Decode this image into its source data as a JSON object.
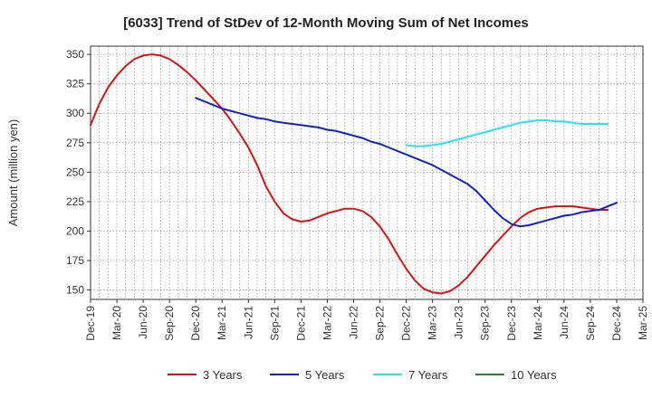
{
  "chart_data": {
    "type": "line",
    "title": "[6033]  Trend of StDev of 12-Month Moving Sum of Net Incomes",
    "xlabel": "",
    "ylabel": "Amount (million yen)",
    "x_ticks": [
      "Dec-19",
      "Mar-20",
      "Jun-20",
      "Sep-20",
      "Dec-20",
      "Mar-21",
      "Jun-21",
      "Sep-21",
      "Dec-21",
      "Mar-22",
      "Jun-22",
      "Sep-22",
      "Dec-22",
      "Mar-23",
      "Jun-23",
      "Sep-23",
      "Dec-23",
      "Mar-24",
      "Jun-24",
      "Sep-24",
      "Dec-24",
      "Mar-25"
    ],
    "y_ticks": [
      150,
      175,
      200,
      225,
      250,
      275,
      300,
      325,
      350
    ],
    "ylim": [
      142,
      357
    ],
    "grid": true,
    "legend_position": "bottom",
    "series": [
      {
        "name": "3 Years",
        "color": "#dd1111",
        "points": [
          [
            "Dec-19",
            290
          ],
          [
            "Jan-20",
            308
          ],
          [
            "Feb-20",
            322
          ],
          [
            "Mar-20",
            332
          ],
          [
            "Apr-20",
            340
          ],
          [
            "May-20",
            346
          ],
          [
            "Jun-20",
            349
          ],
          [
            "Jul-20",
            350
          ],
          [
            "Aug-20",
            349
          ],
          [
            "Sep-20",
            346
          ],
          [
            "Oct-20",
            341
          ],
          [
            "Nov-20",
            335
          ],
          [
            "Dec-20",
            328
          ],
          [
            "Jan-21",
            320
          ],
          [
            "Feb-21",
            312
          ],
          [
            "Mar-21",
            304
          ],
          [
            "Apr-21",
            294
          ],
          [
            "May-21",
            283
          ],
          [
            "Jun-21",
            271
          ],
          [
            "Jul-21",
            256
          ],
          [
            "Aug-21",
            238
          ],
          [
            "Sep-21",
            225
          ],
          [
            "Oct-21",
            215
          ],
          [
            "Nov-21",
            210
          ],
          [
            "Dec-21",
            208
          ],
          [
            "Jan-22",
            209
          ],
          [
            "Feb-22",
            212
          ],
          [
            "Mar-22",
            215
          ],
          [
            "Apr-22",
            217
          ],
          [
            "May-22",
            219
          ],
          [
            "Jun-22",
            219
          ],
          [
            "Jul-22",
            217
          ],
          [
            "Aug-22",
            212
          ],
          [
            "Sep-22",
            204
          ],
          [
            "Oct-22",
            193
          ],
          [
            "Nov-22",
            180
          ],
          [
            "Dec-22",
            168
          ],
          [
            "Jan-23",
            158
          ],
          [
            "Feb-23",
            151
          ],
          [
            "Mar-23",
            148
          ],
          [
            "Apr-23",
            147
          ],
          [
            "May-23",
            149
          ],
          [
            "Jun-23",
            154
          ],
          [
            "Jul-23",
            161
          ],
          [
            "Aug-23",
            170
          ],
          [
            "Sep-23",
            179
          ],
          [
            "Oct-23",
            188
          ],
          [
            "Nov-23",
            196
          ],
          [
            "Dec-23",
            204
          ],
          [
            "Jan-24",
            211
          ],
          [
            "Feb-24",
            216
          ],
          [
            "Mar-24",
            219
          ],
          [
            "Apr-24",
            220
          ],
          [
            "May-24",
            221
          ],
          [
            "Jun-24",
            221
          ],
          [
            "Jul-24",
            221
          ],
          [
            "Aug-24",
            220
          ],
          [
            "Sep-24",
            219
          ],
          [
            "Oct-24",
            218
          ],
          [
            "Nov-24",
            218
          ]
        ]
      },
      {
        "name": "5 Years",
        "color": "#1122cc",
        "points": [
          [
            "Dec-20",
            313
          ],
          [
            "Jan-21",
            310
          ],
          [
            "Feb-21",
            307
          ],
          [
            "Mar-21",
            304
          ],
          [
            "Apr-21",
            302
          ],
          [
            "May-21",
            300
          ],
          [
            "Jun-21",
            298
          ],
          [
            "Jul-21",
            296
          ],
          [
            "Aug-21",
            295
          ],
          [
            "Sep-21",
            293
          ],
          [
            "Oct-21",
            292
          ],
          [
            "Nov-21",
            291
          ],
          [
            "Dec-21",
            290
          ],
          [
            "Jan-22",
            289
          ],
          [
            "Feb-22",
            288
          ],
          [
            "Mar-22",
            286
          ],
          [
            "Apr-22",
            285
          ],
          [
            "May-22",
            283
          ],
          [
            "Jun-22",
            281
          ],
          [
            "Jul-22",
            279
          ],
          [
            "Aug-22",
            276
          ],
          [
            "Sep-22",
            274
          ],
          [
            "Oct-22",
            271
          ],
          [
            "Nov-22",
            268
          ],
          [
            "Dec-22",
            265
          ],
          [
            "Jan-23",
            262
          ],
          [
            "Feb-23",
            259
          ],
          [
            "Mar-23",
            256
          ],
          [
            "Apr-23",
            252
          ],
          [
            "May-23",
            248
          ],
          [
            "Jun-23",
            244
          ],
          [
            "Jul-23",
            240
          ],
          [
            "Aug-23",
            234
          ],
          [
            "Sep-23",
            226
          ],
          [
            "Oct-23",
            218
          ],
          [
            "Nov-23",
            211
          ],
          [
            "Dec-23",
            206
          ],
          [
            "Jan-24",
            204
          ],
          [
            "Feb-24",
            205
          ],
          [
            "Mar-24",
            207
          ],
          [
            "Apr-24",
            209
          ],
          [
            "May-24",
            211
          ],
          [
            "Jun-24",
            213
          ],
          [
            "Jul-24",
            214
          ],
          [
            "Aug-24",
            216
          ],
          [
            "Sep-24",
            217
          ],
          [
            "Oct-24",
            218
          ],
          [
            "Nov-24",
            221
          ],
          [
            "Dec-24",
            224
          ]
        ]
      },
      {
        "name": "7 Years",
        "color": "#22e5f0",
        "points": [
          [
            "Dec-22",
            273
          ],
          [
            "Jan-23",
            272
          ],
          [
            "Feb-23",
            272
          ],
          [
            "Mar-23",
            273
          ],
          [
            "Apr-23",
            274
          ],
          [
            "May-23",
            276
          ],
          [
            "Jun-23",
            278
          ],
          [
            "Jul-23",
            280
          ],
          [
            "Aug-23",
            282
          ],
          [
            "Sep-23",
            284
          ],
          [
            "Oct-23",
            286
          ],
          [
            "Nov-23",
            288
          ],
          [
            "Dec-23",
            290
          ],
          [
            "Jan-24",
            292
          ],
          [
            "Feb-24",
            293
          ],
          [
            "Mar-24",
            294
          ],
          [
            "Apr-24",
            294
          ],
          [
            "May-24",
            293
          ],
          [
            "Jun-24",
            293
          ],
          [
            "Jul-24",
            292
          ],
          [
            "Aug-24",
            291
          ],
          [
            "Sep-24",
            291
          ],
          [
            "Oct-24",
            291
          ],
          [
            "Nov-24",
            291
          ]
        ]
      },
      {
        "name": "10 Years",
        "color": "#228822",
        "points": []
      }
    ]
  }
}
